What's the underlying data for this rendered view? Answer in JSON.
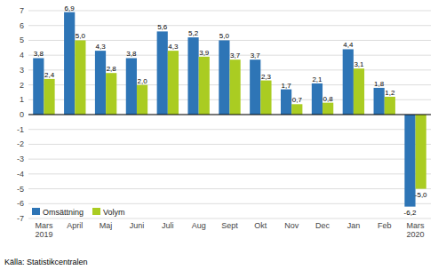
{
  "chart_data": {
    "type": "bar",
    "categories": [
      "Mars\n2019",
      "April",
      "Maj",
      "Juni",
      "Juli",
      "Aug",
      "Sept",
      "Okt",
      "Nov",
      "Dec",
      "Jan",
      "Feb",
      "Mars\n2020"
    ],
    "series": [
      {
        "name": "Omsättning",
        "color": "#2E75B6",
        "values": [
          3.8,
          6.9,
          4.3,
          3.8,
          5.6,
          5.2,
          5.0,
          3.7,
          1.7,
          2.1,
          4.4,
          1.8,
          -6.2
        ],
        "value_labels": [
          "3,8",
          "6,9",
          "4,3",
          "3,8",
          "5,6",
          "5,2",
          "5,0",
          "3,7",
          "1,7",
          "2,1",
          "4,4",
          "1,8",
          "-6,2"
        ]
      },
      {
        "name": "Volym",
        "color": "#AACC22",
        "values": [
          2.4,
          5.0,
          2.8,
          2.0,
          4.3,
          3.9,
          3.7,
          2.3,
          0.7,
          0.8,
          3.1,
          1.2,
          -5.0
        ],
        "value_labels": [
          "2,4",
          "5,0",
          "2,8",
          "2,0",
          "4,3",
          "3,9",
          "3,7",
          "2,3",
          "0,7",
          "0,8",
          "3,1",
          "1,2",
          "-5,0"
        ]
      }
    ],
    "ylim": [
      -7,
      7
    ],
    "yticks": [
      -7,
      -6,
      -5,
      -4,
      -3,
      -2,
      -1,
      0,
      1,
      2,
      3,
      4,
      5,
      6,
      7
    ],
    "grid": true,
    "legend": "lower left",
    "data_labels": true,
    "source": "Källa: Statistikcentralen"
  }
}
